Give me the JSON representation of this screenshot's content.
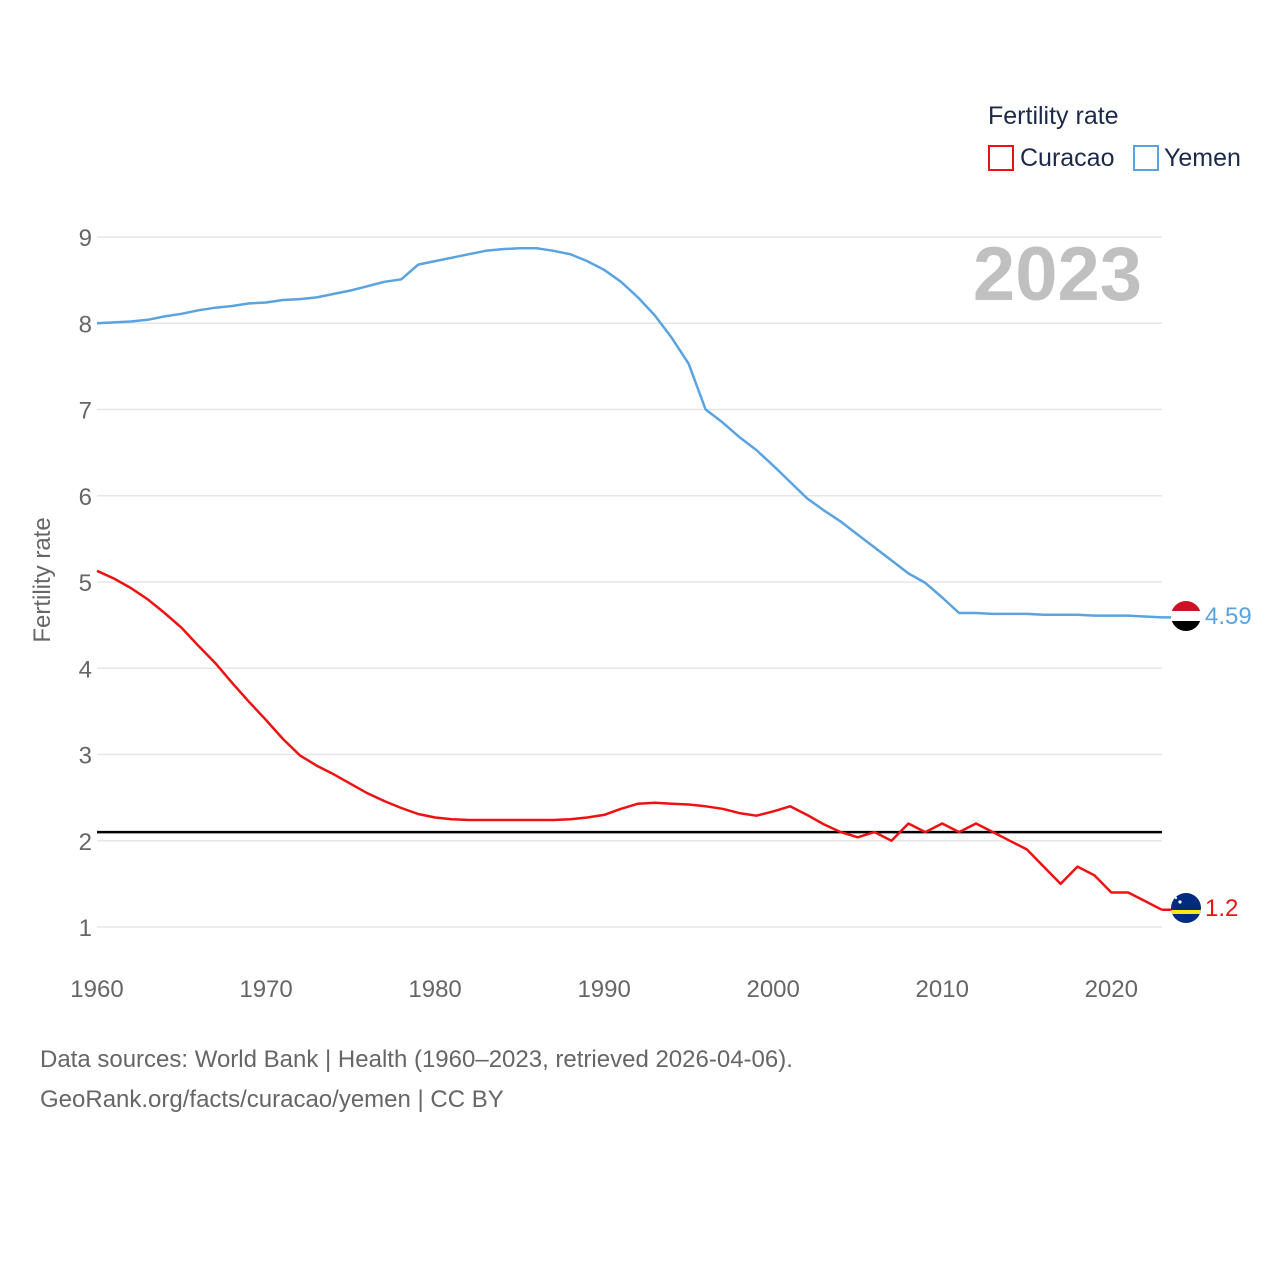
{
  "chart_data": {
    "type": "line",
    "title": "",
    "xlabel": "",
    "ylabel": "Fertility rate",
    "legend_title": "Fertility rate",
    "legend_position": "top-right",
    "year_label": "2023",
    "xlim": [
      1960,
      2023
    ],
    "ylim": [
      0.6,
      9
    ],
    "x_ticks": [
      "1960",
      "1970",
      "1980",
      "1990",
      "2000",
      "2010",
      "2020"
    ],
    "y_ticks": [
      "1",
      "2",
      "3",
      "4",
      "5",
      "6",
      "7",
      "8",
      "9"
    ],
    "grid": true,
    "reference_line": {
      "y": 2.1
    },
    "x": [
      1960,
      1961,
      1962,
      1963,
      1964,
      1965,
      1966,
      1967,
      1968,
      1969,
      1970,
      1971,
      1972,
      1973,
      1974,
      1975,
      1976,
      1977,
      1978,
      1979,
      1980,
      1981,
      1982,
      1983,
      1984,
      1985,
      1986,
      1987,
      1988,
      1989,
      1990,
      1991,
      1992,
      1993,
      1994,
      1995,
      1996,
      1997,
      1998,
      1999,
      2000,
      2001,
      2002,
      2003,
      2004,
      2005,
      2006,
      2007,
      2008,
      2009,
      2010,
      2011,
      2012,
      2013,
      2014,
      2015,
      2016,
      2017,
      2018,
      2019,
      2020,
      2021,
      2022,
      2023
    ],
    "series": [
      {
        "name": "Curacao",
        "color": "#ee1111",
        "end_label": "1.2",
        "values": [
          5.13,
          5.04,
          4.93,
          4.8,
          4.64,
          4.47,
          4.26,
          4.06,
          3.83,
          3.61,
          3.4,
          3.18,
          2.99,
          2.87,
          2.77,
          2.66,
          2.55,
          2.46,
          2.38,
          2.31,
          2.27,
          2.25,
          2.24,
          2.24,
          2.24,
          2.24,
          2.24,
          2.24,
          2.25,
          2.27,
          2.3,
          2.37,
          2.43,
          2.44,
          2.43,
          2.42,
          2.4,
          2.37,
          2.32,
          2.29,
          2.34,
          2.4,
          2.3,
          2.19,
          2.1,
          2.04,
          2.1,
          2.0,
          2.2,
          2.1,
          2.2,
          2.1,
          2.2,
          2.1,
          2.0,
          1.9,
          1.7,
          1.5,
          1.7,
          1.6,
          1.4,
          1.4,
          1.3,
          1.2
        ]
      },
      {
        "name": "Yemen",
        "color": "#5ba3e0",
        "end_label": "4.59",
        "values": [
          8.0,
          8.01,
          8.02,
          8.04,
          8.08,
          8.11,
          8.15,
          8.18,
          8.2,
          8.23,
          8.24,
          8.27,
          8.28,
          8.3,
          8.34,
          8.38,
          8.43,
          8.48,
          8.51,
          8.68,
          8.72,
          8.76,
          8.8,
          8.84,
          8.86,
          8.87,
          8.87,
          8.84,
          8.8,
          8.72,
          8.62,
          8.48,
          8.3,
          8.09,
          7.83,
          7.53,
          7.0,
          6.85,
          6.68,
          6.53,
          6.35,
          6.16,
          5.97,
          5.83,
          5.7,
          5.55,
          5.4,
          5.25,
          5.1,
          4.99,
          4.82,
          4.64,
          4.64,
          4.63,
          4.63,
          4.63,
          4.62,
          4.62,
          4.62,
          4.61,
          4.61,
          4.61,
          4.6,
          4.59
        ]
      }
    ]
  },
  "flags": {
    "yemen": "yemen-flag-icon",
    "curacao": "curacao-flag-icon"
  },
  "footer": {
    "source_line": "Data sources: World Bank | Health (1960–2023, retrieved 2026-04-06).",
    "credit_line": "GeoRank.org/facts/curacao/yemen | CC BY"
  }
}
